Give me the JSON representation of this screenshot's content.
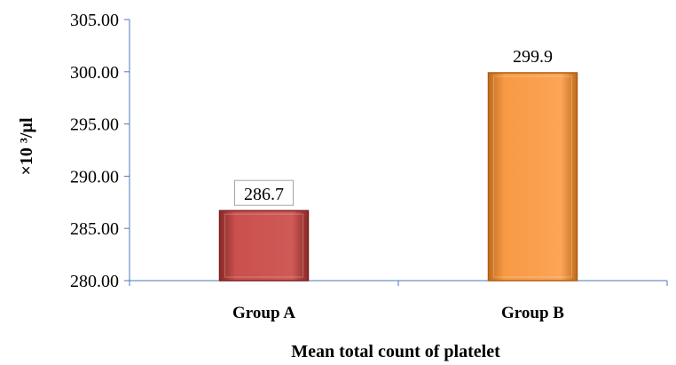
{
  "chart_data": {
    "type": "bar",
    "categories": [
      "Group A",
      "Group B"
    ],
    "values": [
      286.7,
      299.9
    ],
    "data_labels": [
      "286.7",
      "299.9"
    ],
    "xlabel": "Mean total count of platelet",
    "ylabel": "×10 ³/µl",
    "ylim": [
      280,
      305
    ],
    "yticks": [
      280,
      285,
      290,
      295,
      300,
      305
    ],
    "ytick_labels": [
      "280.00",
      "285.00",
      "290.00",
      "295.00",
      "300.00",
      "305.00"
    ],
    "grid": false,
    "legend": "none",
    "colors": {
      "bars": [
        "#c9504d",
        "#f79a45"
      ],
      "bar_edges": [
        "#7a2220",
        "#b05d12"
      ],
      "axis": "#4a7ab8",
      "label_box_border": "#a6a6a6"
    }
  }
}
